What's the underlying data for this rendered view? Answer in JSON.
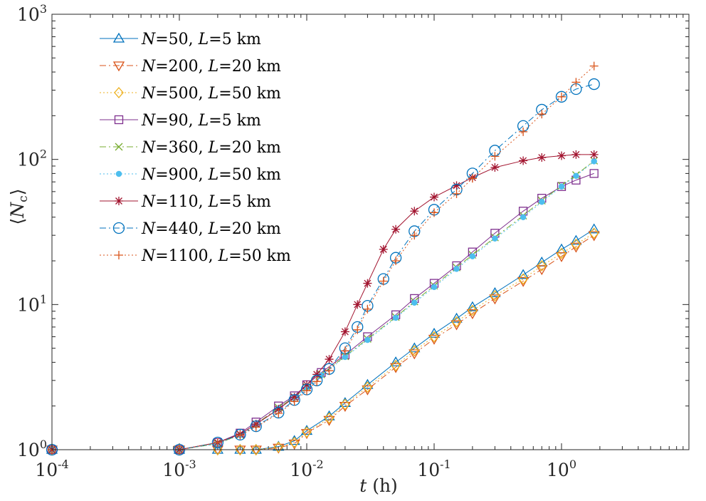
{
  "chart_data": {
    "type": "line",
    "xscale": "log",
    "yscale": "log",
    "xlim": [
      0.0001,
      10
    ],
    "ylim": [
      1,
      1000
    ],
    "xlabel": "t (h)",
    "xlabel_var": "t",
    "xlabel_unit": "(h)",
    "ylabel": "⟨Nc⟩",
    "ylabel_left": "⟨",
    "ylabel_var": "N",
    "ylabel_sub": "c",
    "ylabel_right": "⟩",
    "xticks": [
      {
        "base": "10",
        "exp": "-4",
        "value": 0.0001
      },
      {
        "base": "10",
        "exp": "-3",
        "value": 0.001
      },
      {
        "base": "10",
        "exp": "-2",
        "value": 0.01
      },
      {
        "base": "10",
        "exp": "-1",
        "value": 0.1
      },
      {
        "base": "10",
        "exp": "0",
        "value": 1
      }
    ],
    "yticks": [
      {
        "base": "10",
        "exp": "0",
        "value": 1
      },
      {
        "base": "10",
        "exp": "1",
        "value": 10
      },
      {
        "base": "10",
        "exp": "2",
        "value": 100
      },
      {
        "base": "10",
        "exp": "3",
        "value": 1000
      }
    ],
    "grid": false,
    "legend_position": "top-left",
    "series": [
      {
        "label": "N=50, L=5 km",
        "n": "50",
        "l": "5 km",
        "color": "#0072BD",
        "marker": "triangle-up",
        "line": "solid",
        "x": [
          0.0001,
          0.001,
          0.002,
          0.003,
          0.004,
          0.006,
          0.008,
          0.01,
          0.015,
          0.02,
          0.03,
          0.05,
          0.07,
          0.1,
          0.15,
          0.2,
          0.3,
          0.5,
          0.7,
          1,
          1.3,
          1.8
        ],
        "y": [
          1,
          1,
          1,
          1,
          1,
          1.05,
          1.15,
          1.35,
          1.7,
          2.1,
          2.8,
          4.0,
          5.0,
          6.3,
          8.0,
          9.6,
          12,
          16,
          19.5,
          24,
          27.5,
          33
        ]
      },
      {
        "label": "N=200, L=20 km",
        "n": "200",
        "l": "20 km",
        "color": "#D95319",
        "marker": "triangle-down",
        "line": "dashdot",
        "x": [
          0.0001,
          0.001,
          0.002,
          0.003,
          0.004,
          0.006,
          0.008,
          0.01,
          0.015,
          0.02,
          0.03,
          0.05,
          0.07,
          0.1,
          0.15,
          0.2,
          0.3,
          0.5,
          0.7,
          1,
          1.3,
          1.8
        ],
        "y": [
          1,
          1,
          1,
          1,
          1,
          1.03,
          1.1,
          1.3,
          1.6,
          2.0,
          2.6,
          3.7,
          4.6,
          5.8,
          7.3,
          8.7,
          11,
          14.5,
          17.5,
          21.5,
          25,
          30
        ]
      },
      {
        "label": "N=500, L=50 km",
        "n": "500",
        "l": "50 km",
        "color": "#EDB120",
        "marker": "diamond",
        "line": "dotted",
        "x": [
          0.0001,
          0.001,
          0.002,
          0.003,
          0.004,
          0.006,
          0.008,
          0.01,
          0.015,
          0.02,
          0.03,
          0.05,
          0.07,
          0.1,
          0.15,
          0.2,
          0.3,
          0.5,
          0.7,
          1,
          1.3,
          1.8
        ],
        "y": [
          1,
          1,
          1,
          1,
          1,
          1.04,
          1.12,
          1.32,
          1.65,
          2.05,
          2.7,
          3.8,
          4.8,
          6.0,
          7.6,
          9.1,
          11.5,
          15,
          18.5,
          22.5,
          26,
          31
        ]
      },
      {
        "label": "N=90, L=5 km",
        "n": "90",
        "l": "5 km",
        "color": "#7E2F8E",
        "marker": "square",
        "line": "solid",
        "x": [
          0.0001,
          0.001,
          0.002,
          0.003,
          0.004,
          0.006,
          0.008,
          0.01,
          0.013,
          0.02,
          0.03,
          0.05,
          0.07,
          0.1,
          0.15,
          0.2,
          0.3,
          0.5,
          0.7,
          1,
          1.3,
          1.8
        ],
        "y": [
          1,
          1,
          1.12,
          1.3,
          1.55,
          2.0,
          2.35,
          2.8,
          3.4,
          4.5,
          6.0,
          8.5,
          11,
          14,
          18.5,
          23,
          31,
          44,
          54,
          65,
          72,
          80
        ]
      },
      {
        "label": "N=360, L=20 km",
        "n": "360",
        "l": "20 km",
        "color": "#77AC30",
        "marker": "x",
        "line": "dashdot",
        "x": [
          0.0001,
          0.001,
          0.002,
          0.003,
          0.004,
          0.006,
          0.008,
          0.01,
          0.013,
          0.02,
          0.03,
          0.05,
          0.07,
          0.1,
          0.15,
          0.2,
          0.3,
          0.5,
          0.7,
          1,
          1.3,
          1.8
        ],
        "y": [
          1,
          1,
          1.1,
          1.27,
          1.5,
          1.95,
          2.3,
          2.7,
          3.3,
          4.4,
          5.8,
          8.2,
          10.5,
          13.5,
          18,
          22,
          29,
          41,
          52,
          66,
          78,
          98
        ]
      },
      {
        "label": "N=900, L=50 km",
        "n": "900",
        "l": "50 km",
        "color": "#4DBEEE",
        "marker": "dot",
        "line": "dotted",
        "x": [
          0.0001,
          0.001,
          0.002,
          0.003,
          0.004,
          0.006,
          0.008,
          0.01,
          0.013,
          0.02,
          0.03,
          0.05,
          0.07,
          0.1,
          0.15,
          0.2,
          0.3,
          0.5,
          0.7,
          1,
          1.3,
          1.8
        ],
        "y": [
          1,
          1,
          1.1,
          1.26,
          1.48,
          1.92,
          2.28,
          2.68,
          3.25,
          4.35,
          5.7,
          8.1,
          10.3,
          13.2,
          17.6,
          21.5,
          28.5,
          40,
          51,
          65,
          77,
          97
        ]
      },
      {
        "label": "N=110, L=5 km",
        "n": "110",
        "l": "5 km",
        "color": "#A2142F",
        "marker": "asterisk",
        "line": "solid",
        "x": [
          0.0001,
          0.001,
          0.002,
          0.003,
          0.004,
          0.006,
          0.008,
          0.01,
          0.012,
          0.015,
          0.02,
          0.025,
          0.03,
          0.04,
          0.05,
          0.07,
          0.1,
          0.15,
          0.2,
          0.3,
          0.5,
          0.7,
          1,
          1.3,
          1.8
        ],
        "y": [
          1,
          1,
          1.12,
          1.28,
          1.5,
          1.9,
          2.3,
          2.8,
          3.3,
          4.2,
          6.5,
          10,
          14,
          24,
          33,
          44,
          55,
          66,
          75,
          88,
          98,
          103,
          106,
          108,
          108
        ]
      },
      {
        "label": "N=440, L=20 km",
        "n": "440",
        "l": "20 km",
        "color": "#0072BD",
        "marker": "circle",
        "line": "dashdot",
        "x": [
          0.0001,
          0.001,
          0.002,
          0.003,
          0.004,
          0.006,
          0.008,
          0.01,
          0.012,
          0.015,
          0.02,
          0.025,
          0.03,
          0.04,
          0.05,
          0.07,
          0.1,
          0.15,
          0.2,
          0.3,
          0.5,
          0.7,
          1,
          1.3,
          1.8
        ],
        "y": [
          1,
          1,
          1.12,
          1.27,
          1.45,
          1.8,
          2.2,
          2.6,
          3.0,
          3.6,
          5.0,
          7.0,
          9.8,
          15,
          21,
          32,
          45,
          62,
          80,
          115,
          170,
          220,
          270,
          305,
          330
        ]
      },
      {
        "label": "N=1100, L=50 km",
        "n": "1100",
        "l": "50 km",
        "color": "#D95319",
        "marker": "plus",
        "line": "dotted",
        "x": [
          0.0001,
          0.001,
          0.002,
          0.003,
          0.004,
          0.006,
          0.008,
          0.01,
          0.012,
          0.015,
          0.02,
          0.025,
          0.03,
          0.04,
          0.05,
          0.07,
          0.1,
          0.15,
          0.2,
          0.3,
          0.5,
          0.7,
          1,
          1.3,
          1.8
        ],
        "y": [
          1,
          1,
          1.12,
          1.26,
          1.43,
          1.78,
          2.15,
          2.55,
          2.95,
          3.5,
          4.8,
          6.7,
          9.3,
          14.5,
          20,
          30,
          43,
          58,
          74,
          105,
          155,
          205,
          270,
          340,
          440
        ]
      }
    ]
  }
}
